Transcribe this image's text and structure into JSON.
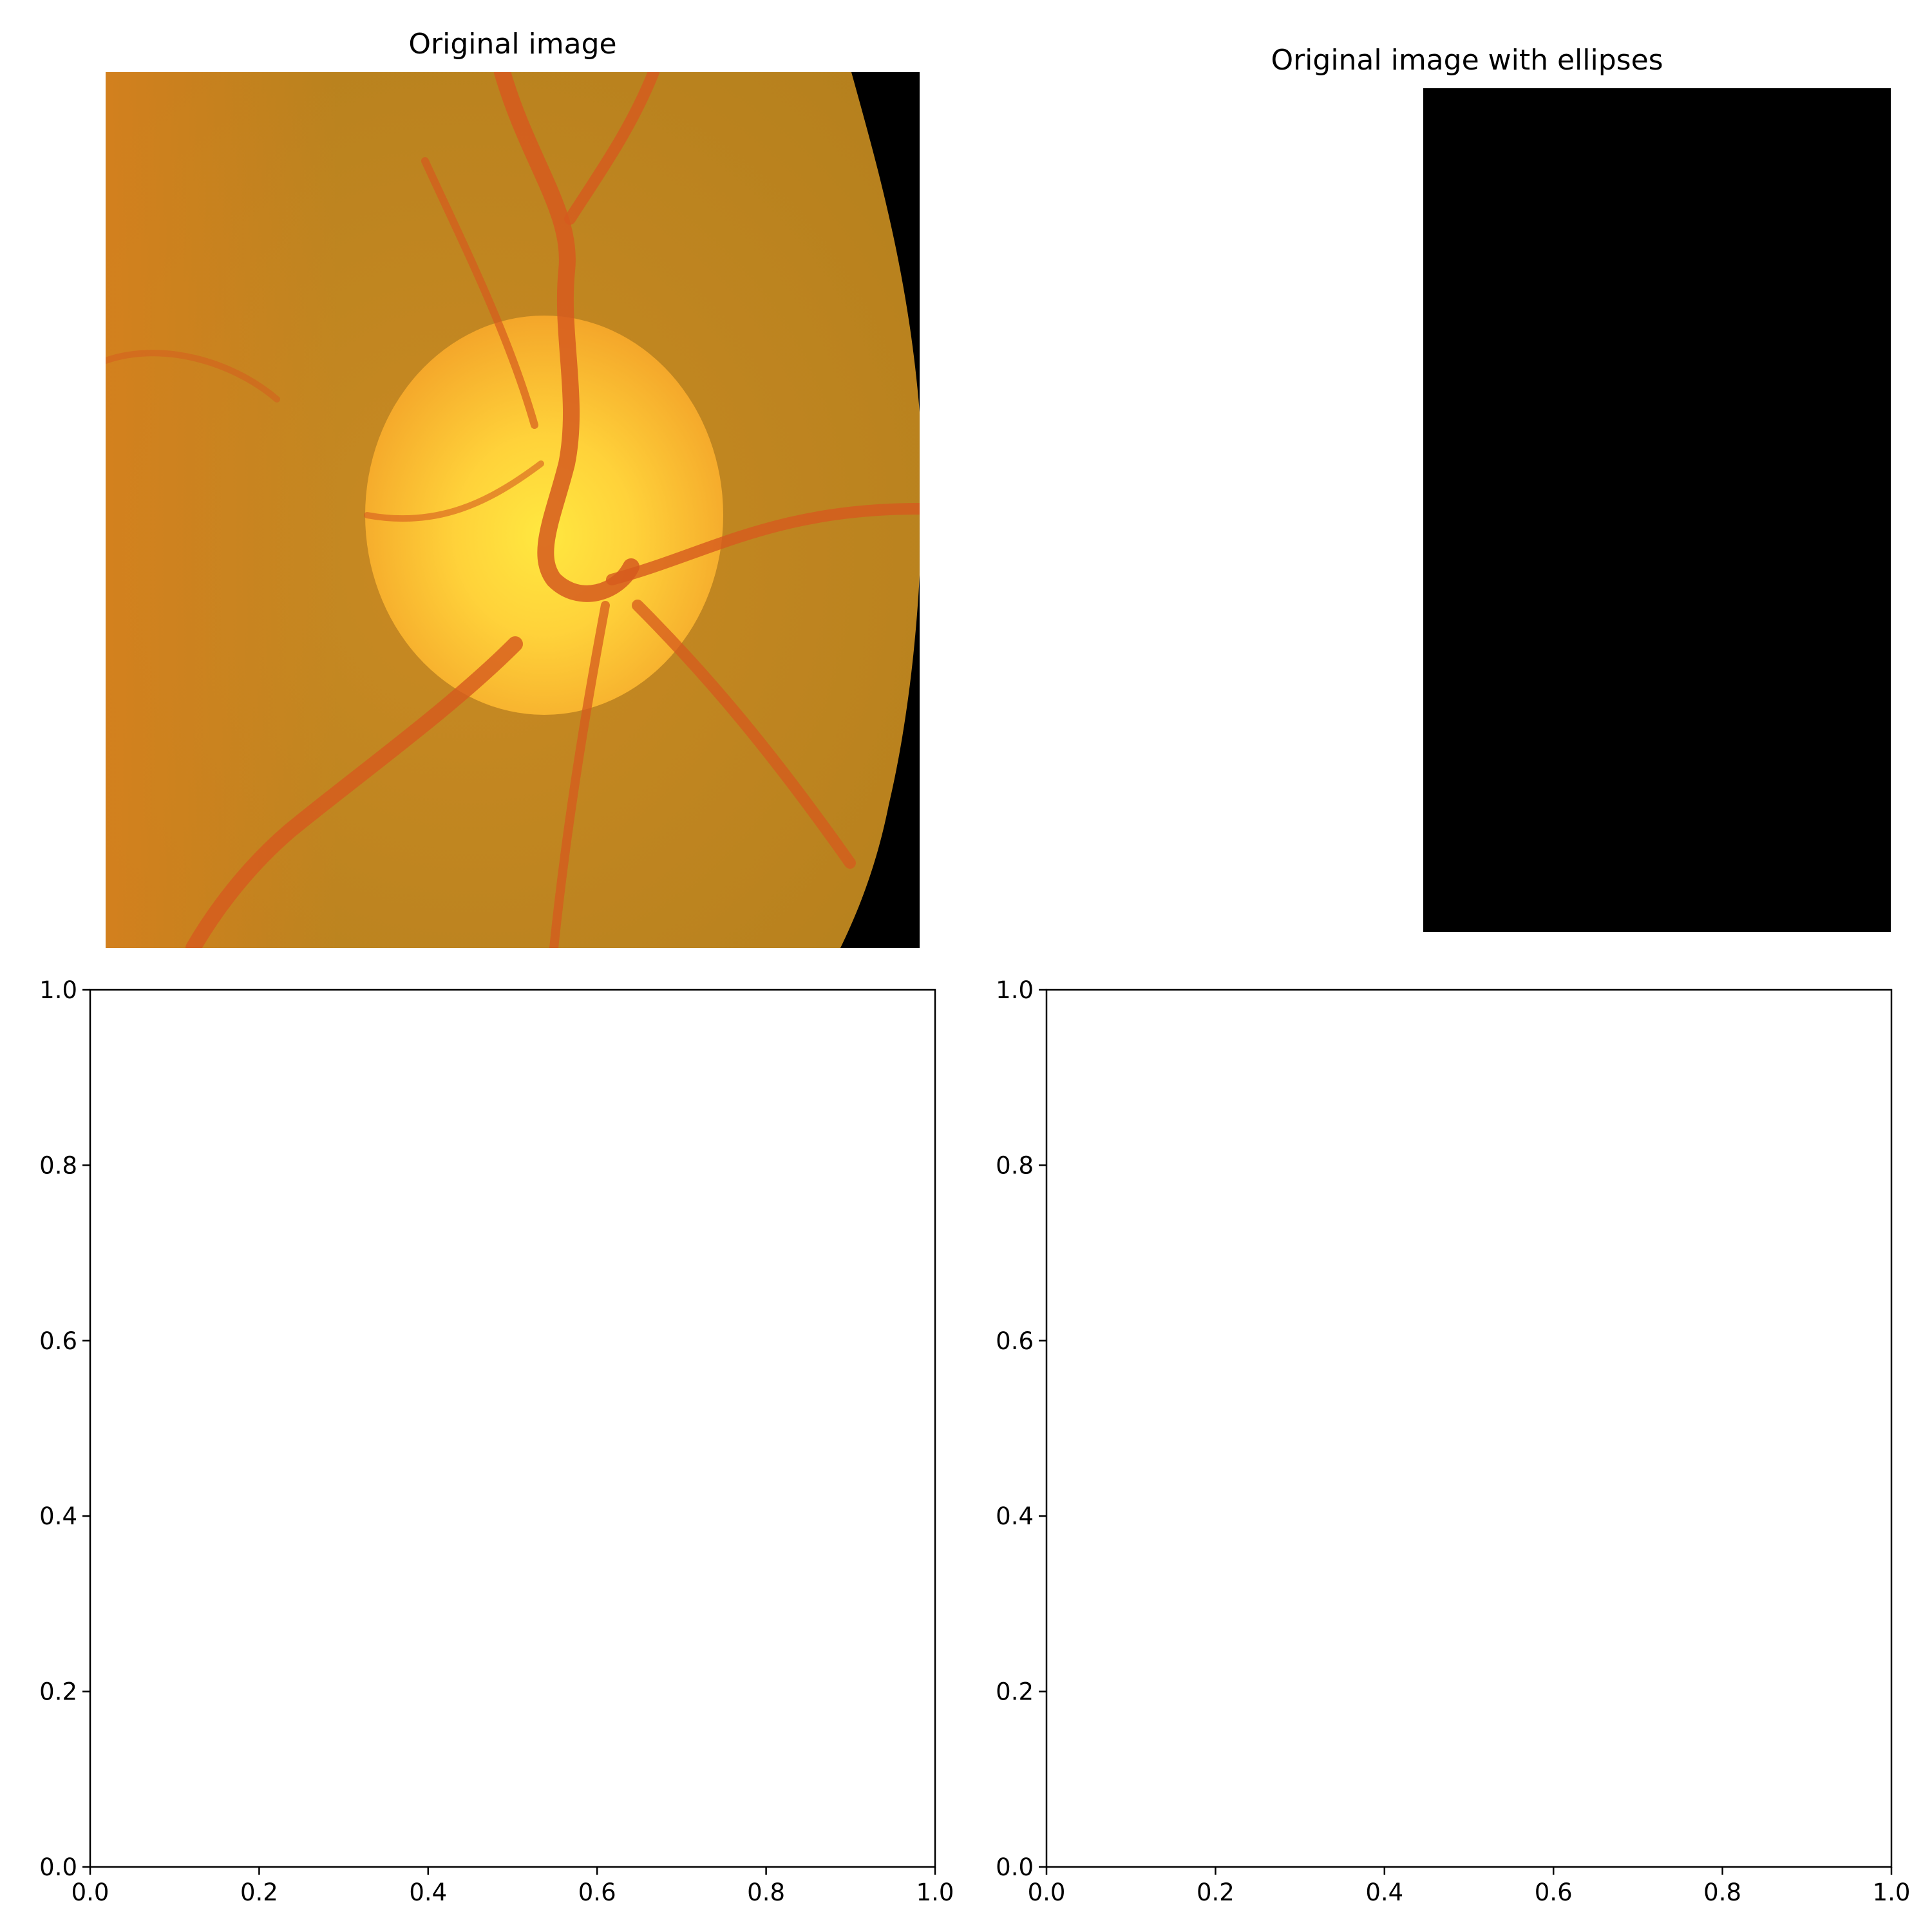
{
  "figure": {
    "panels": {
      "top_left": {
        "title": "Original image"
      },
      "top_right": {
        "title": "Original image with ellipses"
      }
    }
  },
  "colors": {
    "fundus_outer": "#b5801d",
    "fundus_mid": "#c98a23",
    "fundus_edge_left": "#d9801e",
    "disc_outer": "#f4a62a",
    "disc_inner": "#ffd23a",
    "disc_center": "#ffe840",
    "vessel": "#d65a1e",
    "mask_black": "#000000",
    "axis": "#000000"
  },
  "icons": {
    "retina": "retina-fundus-image",
    "black_region": "black-image-region"
  },
  "chart_data": [
    {
      "type": "empty",
      "title": "",
      "xlim": [
        0.0,
        1.0
      ],
      "ylim": [
        0.0,
        1.0
      ],
      "xticks": [
        "0.0",
        "0.2",
        "0.4",
        "0.6",
        "0.8",
        "1.0"
      ],
      "yticks": [
        "0.0",
        "0.2",
        "0.4",
        "0.6",
        "0.8",
        "1.0"
      ],
      "xlabel": "",
      "ylabel": "",
      "grid": false
    },
    {
      "type": "empty",
      "title": "",
      "xlim": [
        0.0,
        1.0
      ],
      "ylim": [
        0.0,
        1.0
      ],
      "xticks": [
        "0.0",
        "0.2",
        "0.4",
        "0.6",
        "0.8",
        "1.0"
      ],
      "yticks": [
        "0.0",
        "0.2",
        "0.4",
        "0.6",
        "0.8",
        "1.0"
      ],
      "xlabel": "",
      "ylabel": "",
      "grid": false
    }
  ]
}
